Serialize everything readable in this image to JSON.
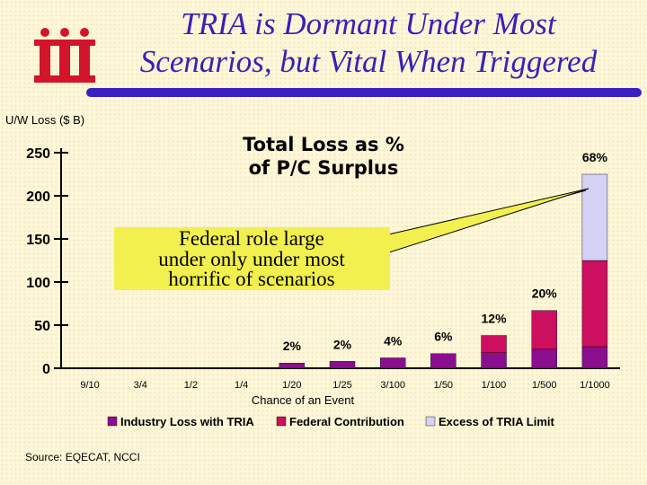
{
  "slide": {
    "title_line1": "TRIA is Dormant Under Most",
    "title_line2": "Scenarios, but Vital When Triggered",
    "source": "Source: EQECAT, NCCI"
  },
  "colors": {
    "title": "#3a20b8",
    "rule": "#3c1fc0",
    "industry": "#8a0f8e",
    "federal": "#cc0f5e",
    "excess": "#d5d2f4",
    "callout": "#f2f04e",
    "logo": "#d2152a"
  },
  "chart_data": {
    "type": "bar",
    "stacked": true,
    "title_line1": "Total Loss as %",
    "title_line2": "of P/C Surplus",
    "ylabel": "U/W Loss ($ B)",
    "xlabel": "Chance of an Event",
    "ylim": [
      0,
      250
    ],
    "yticks": [
      0,
      50,
      100,
      150,
      200,
      250
    ],
    "categories": [
      "9/10",
      "3/4",
      "1/2",
      "1/4",
      "1/20",
      "1/25",
      "3/100",
      "1/50",
      "1/100",
      "1/500",
      "1/1000"
    ],
    "series": [
      {
        "name": "Industry Loss with TRIA",
        "values": [
          0,
          0,
          0,
          0,
          6,
          8,
          12,
          17,
          18,
          22,
          25
        ]
      },
      {
        "name": "Federal Contribution",
        "values": [
          0,
          0,
          0,
          0,
          0,
          0,
          0,
          0,
          20,
          45,
          100
        ]
      },
      {
        "name": "Excess of TRIA Limit",
        "values": [
          0,
          0,
          0,
          0,
          0,
          0,
          0,
          0,
          0,
          0,
          100
        ]
      }
    ],
    "data_labels": [
      "",
      "",
      "",
      "",
      "2%",
      "2%",
      "4%",
      "6%",
      "12%",
      "20%",
      "68%"
    ],
    "legend_position": "bottom",
    "annotation": {
      "line1": "Federal role large",
      "line2": "under only under most",
      "line3": "horrific of scenarios"
    }
  }
}
